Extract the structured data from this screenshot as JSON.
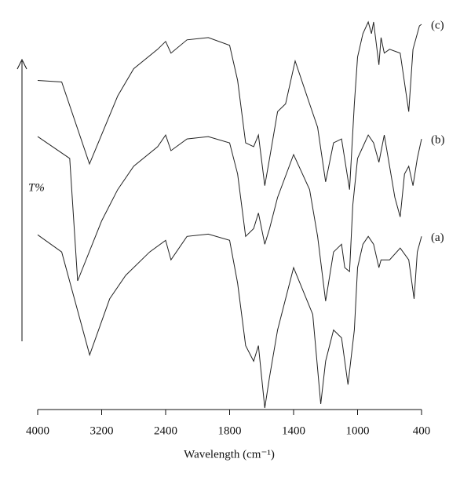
{
  "chart_data": {
    "type": "line",
    "y_label": "T%",
    "x_label": "Wavelength (cm⁻¹)",
    "xticks": [
      4000,
      3200,
      2400,
      1800,
      1400,
      1000,
      400
    ],
    "ylim": [
      0,
      500
    ],
    "grid": false,
    "series": [
      {
        "name": "(c)",
        "color": "#222222",
        "x": [
          4000,
          3700,
          3352,
          3000,
          2800,
          2500,
          2400,
          2350,
          2200,
          2000,
          1800,
          1750,
          1700,
          1650,
          1620,
          1580,
          1550,
          1500,
          1450,
          1390,
          1300,
          1250,
          1200,
          1150,
          1100,
          1050,
          1020,
          1000,
          950,
          900,
          870,
          850,
          800,
          780,
          750,
          700,
          600,
          520,
          480,
          420,
          400
        ],
        "values": [
          422,
          420,
          315,
          402,
          437,
          462,
          472,
          457,
          474,
          477,
          467,
          422,
          342,
          337,
          352,
          287,
          322,
          382,
          392,
          447,
          392,
          362,
          292,
          342,
          347,
          282,
          392,
          452,
          482,
          497,
          482,
          497,
          442,
          477,
          457,
          462,
          457,
          382,
          462,
          492,
          494
        ]
      },
      {
        "name": "(b)",
        "color": "#222222",
        "x": [
          4000,
          3600,
          3500,
          3200,
          3000,
          2800,
          2500,
          2400,
          2350,
          2200,
          2000,
          1800,
          1750,
          1700,
          1650,
          1620,
          1580,
          1550,
          1500,
          1400,
          1300,
          1250,
          1200,
          1150,
          1100,
          1080,
          1050,
          1030,
          1000,
          950,
          900,
          850,
          800,
          750,
          700,
          650,
          600,
          560,
          520,
          480,
          440,
          400
        ],
        "values": [
          350,
          322,
          165,
          242,
          282,
          312,
          337,
          352,
          332,
          347,
          350,
          342,
          302,
          222,
          232,
          252,
          212,
          232,
          272,
          327,
          282,
          222,
          139,
          202,
          212,
          182,
          177,
          262,
          322,
          337,
          352,
          342,
          317,
          352,
          312,
          272,
          247,
          302,
          312,
          287,
          322,
          347
        ]
      },
      {
        "name": "(a)",
        "color": "#222222",
        "x": [
          4000,
          3700,
          3350,
          3100,
          2900,
          2600,
          2400,
          2350,
          2200,
          2000,
          1800,
          1750,
          1700,
          1650,
          1620,
          1580,
          1550,
          1500,
          1400,
          1320,
          1280,
          1230,
          1200,
          1150,
          1100,
          1060,
          1020,
          1000,
          950,
          900,
          850,
          800,
          780,
          750,
          700,
          600,
          520,
          470,
          440,
          400
        ],
        "values": [
          224,
          202,
          70,
          142,
          172,
          202,
          217,
          192,
          222,
          225,
          217,
          162,
          82,
          62,
          82,
          2,
          42,
          102,
          182,
          142,
          122,
          7,
          62,
          102,
          92,
          32,
          102,
          182,
          212,
          222,
          212,
          182,
          192,
          192,
          192,
          207,
          192,
          142,
          202,
          222
        ]
      }
    ]
  }
}
